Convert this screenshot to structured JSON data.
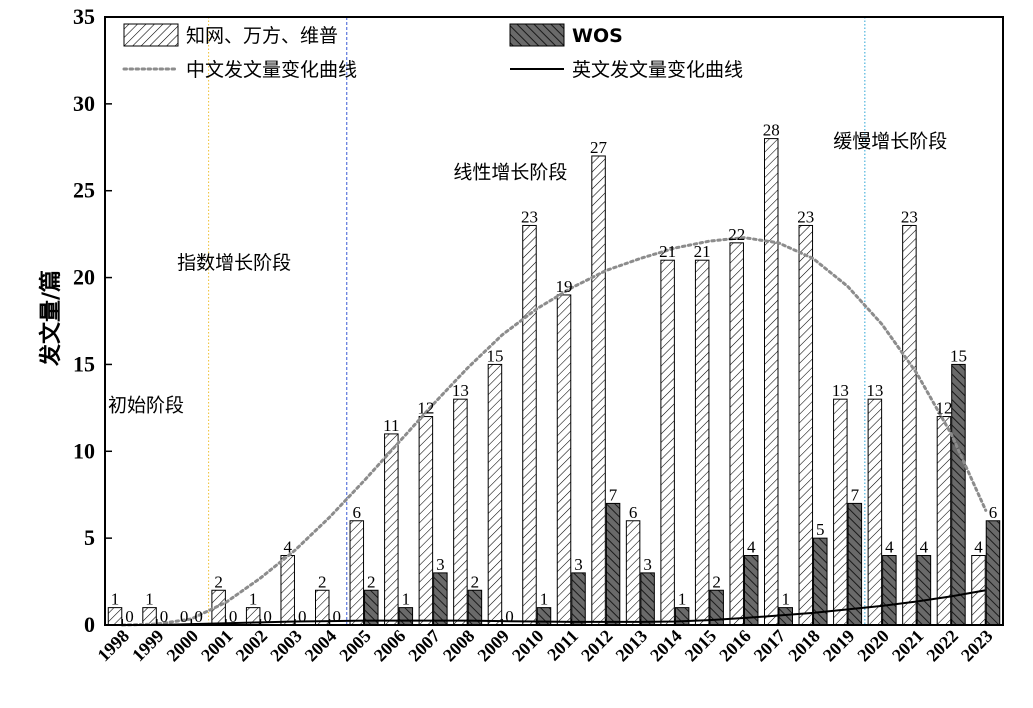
{
  "chart_data": {
    "type": "bar",
    "title": "",
    "xlabel": "",
    "ylabel": "发文量/篇",
    "ylim": [
      0,
      35
    ],
    "yticks": [
      0,
      5,
      10,
      15,
      20,
      25,
      30,
      35
    ],
    "grid": false,
    "legend_position": "top",
    "categories": [
      "1998",
      "1999",
      "2000",
      "2001",
      "2002",
      "2003",
      "2004",
      "2005",
      "2006",
      "2007",
      "2008",
      "2009",
      "2010",
      "2011",
      "2012",
      "2013",
      "2014",
      "2015",
      "2016",
      "2017",
      "2018",
      "2019",
      "2020",
      "2021",
      "2022",
      "2023"
    ],
    "series": [
      {
        "name": "知网、万方、维普",
        "kind": "bar",
        "pattern": "light-hatch",
        "values": [
          1,
          1,
          0,
          2,
          1,
          4,
          2,
          6,
          11,
          12,
          13,
          15,
          23,
          19,
          27,
          6,
          21,
          21,
          22,
          28,
          23,
          13,
          13,
          23,
          12,
          4
        ],
        "labels": [
          "1",
          "1",
          "0",
          "2",
          "1",
          "4",
          "2",
          "6",
          "11",
          "12",
          "13",
          "15",
          "23",
          "19",
          "27",
          "6",
          "21",
          "21",
          "22",
          "28",
          "23",
          "13",
          "13",
          "23",
          "12",
          "4"
        ],
        "show_labels": true
      },
      {
        "name": "WOS",
        "kind": "bar",
        "pattern": "dark-hatch",
        "values": [
          0,
          0,
          0,
          0,
          0,
          0,
          0,
          2,
          1,
          3,
          2,
          0,
          1,
          3,
          7,
          3,
          1,
          2,
          4,
          1,
          5,
          7,
          4,
          4,
          15,
          6
        ],
        "labels": [
          "0",
          "0",
          "0",
          "0",
          "0",
          "0",
          "0",
          "2",
          "1",
          "3",
          "2",
          "0",
          "1",
          "3",
          "7",
          "3",
          "1",
          "2",
          "4",
          "1",
          "5",
          "7",
          "4",
          "4",
          "15",
          "6"
        ],
        "show_labels": true
      },
      {
        "name": "中文发文量变化曲线",
        "kind": "line",
        "style": "dotted",
        "color": "#8c8c8c",
        "values": [
          0,
          0.05,
          0.35,
          1.3,
          2.7,
          4.3,
          6.2,
          8.3,
          10.5,
          12.7,
          14.8,
          16.7,
          18.2,
          19.4,
          20.4,
          21.1,
          21.7,
          22.1,
          22.3,
          22.0,
          21.1,
          19.5,
          17.3,
          14.5,
          11.0,
          6.6
        ]
      },
      {
        "name": "英文发文量变化曲线",
        "kind": "line",
        "style": "solid",
        "color": "#000000",
        "values": [
          0,
          0,
          0.05,
          0.1,
          0.15,
          0.2,
          0.22,
          0.25,
          0.25,
          0.25,
          0.25,
          0.22,
          0.2,
          0.18,
          0.18,
          0.18,
          0.2,
          0.28,
          0.4,
          0.55,
          0.7,
          0.9,
          1.1,
          1.35,
          1.65,
          2.0
        ]
      }
    ],
    "phase_dividers": [
      {
        "after_category": "2000",
        "style": "dotted",
        "color": "#f0c030"
      },
      {
        "after_category": "2004",
        "style": "dashed",
        "color": "#3b5bd6"
      },
      {
        "after_category": "2019",
        "style": "dotted",
        "color": "#2aa4d6"
      }
    ],
    "annotations": [
      {
        "text": "初始阶段",
        "category": "1998",
        "y": 12.3
      },
      {
        "text": "指数增长阶段",
        "category": "2000",
        "y": 20.5
      },
      {
        "text": "线性增长阶段",
        "category": "2008",
        "y": 25.7
      },
      {
        "text": "缓慢增长阶段",
        "category": "2019",
        "y": 27.5
      }
    ]
  }
}
